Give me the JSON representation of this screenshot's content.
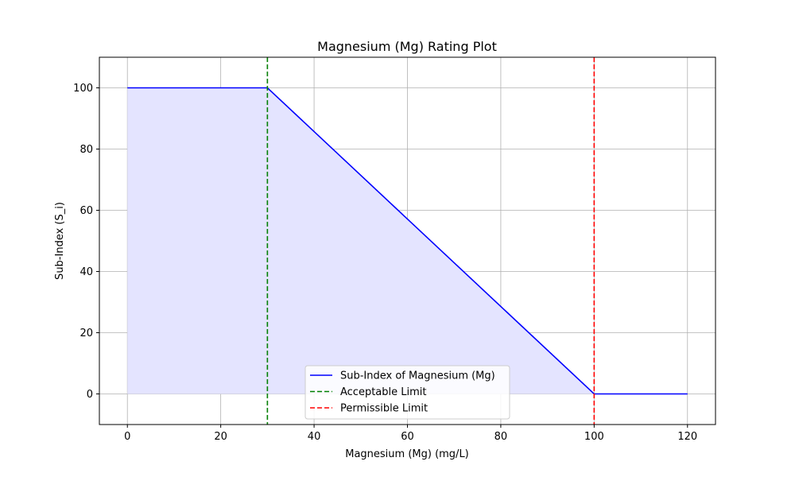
{
  "chart_data": {
    "type": "line",
    "title": "Magnesium (Mg) Rating Plot",
    "xlabel": "Magnesium (Mg) (mg/L)",
    "ylabel": "Sub-Index (S_i)",
    "xlim": [
      -6,
      126
    ],
    "ylim": [
      -10,
      110
    ],
    "x_ticks": [
      0,
      20,
      40,
      60,
      80,
      100,
      120
    ],
    "y_ticks": [
      0,
      20,
      40,
      60,
      80,
      100
    ],
    "grid": true,
    "legend_position": "bottom-center",
    "series": [
      {
        "name": "Sub-Index of Magnesium (Mg)",
        "color": "#0000ff",
        "fill_color": "#e4e4ff",
        "x": [
          0,
          30,
          100,
          120
        ],
        "y": [
          100,
          100,
          0,
          0
        ]
      }
    ],
    "reference_lines": [
      {
        "name": "Acceptable Limit",
        "x": 30,
        "color": "#008000"
      },
      {
        "name": "Permissible Limit",
        "x": 100,
        "color": "#ff0000"
      }
    ]
  }
}
